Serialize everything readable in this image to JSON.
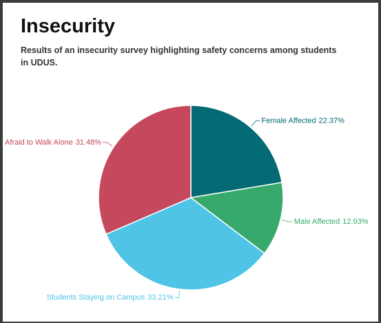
{
  "chart_data": {
    "type": "pie",
    "title": "Insecurity",
    "subtitle": "Results of an insecurity survey highlighting safety concerns among students in UDUS.",
    "categories": [
      "Female Affected",
      "Male Affected",
      "Students Staying on Campus",
      "Afraid to Walk Alone"
    ],
    "values": [
      22.37,
      12.93,
      33.21,
      31.48
    ],
    "value_labels": [
      "22.37%",
      "12.93%",
      "33.21%",
      "31.48%"
    ],
    "colors": [
      "#046a74",
      "#38a96c",
      "#4fc4e7",
      "#c5485d"
    ]
  }
}
